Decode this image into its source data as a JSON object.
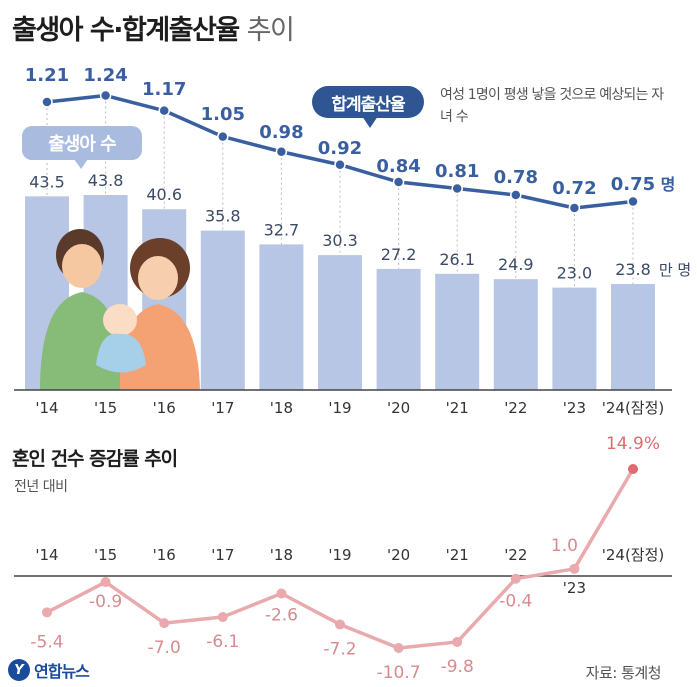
{
  "title": {
    "main": "출생아 수·합계출산율",
    "light": "추이"
  },
  "callout": {
    "label": "합계출산율",
    "note": "여성 1명이 평생 낳을 것으로 예상되는 자녀 수"
  },
  "births_label": "출생아 수",
  "units": {
    "fertility": "명",
    "births": "만 명"
  },
  "marriage": {
    "title": "혼인 건수 증감률 추이",
    "subtitle": "전년 대비"
  },
  "source": "자료: 통계청",
  "logo": {
    "mark": "Y",
    "text": "연합뉴스"
  },
  "colors": {
    "bar": "#b7c6e4",
    "line": "#3a5fa0",
    "marriage_line": "#e9a9ad",
    "marriage_last": "#e06b70",
    "axis": "#444444"
  },
  "chart_data": [
    {
      "type": "bar",
      "name": "births",
      "categories": [
        "'14",
        "'15",
        "'16",
        "'17",
        "'18",
        "'19",
        "'20",
        "'21",
        "'22",
        "'23",
        "'24(잠정)"
      ],
      "values": [
        43.5,
        43.8,
        40.6,
        35.8,
        32.7,
        30.3,
        27.2,
        26.1,
        24.9,
        23.0,
        23.8
      ],
      "labels": [
        "43.5",
        "43.8",
        "40.6",
        "35.8",
        "32.7",
        "30.3",
        "27.2",
        "26.1",
        "24.9",
        "23.0",
        "23.8"
      ],
      "ylabel": "만 명"
    },
    {
      "type": "line",
      "name": "fertility_rate",
      "categories": [
        "'14",
        "'15",
        "'16",
        "'17",
        "'18",
        "'19",
        "'20",
        "'21",
        "'22",
        "'23",
        "'24(잠정)"
      ],
      "values": [
        1.21,
        1.24,
        1.17,
        1.05,
        0.98,
        0.92,
        0.84,
        0.81,
        0.78,
        0.72,
        0.75
      ],
      "labels": [
        "1.21",
        "1.24",
        "1.17",
        "1.05",
        "0.98",
        "0.92",
        "0.84",
        "0.81",
        "0.78",
        "0.72",
        "0.75"
      ],
      "ylabel": "명"
    },
    {
      "type": "line",
      "name": "marriage_change",
      "categories": [
        "'14",
        "'15",
        "'16",
        "'17",
        "'18",
        "'19",
        "'20",
        "'21",
        "'22",
        "'23",
        "'24(잠정)"
      ],
      "values": [
        -5.4,
        -0.9,
        -7.0,
        -6.1,
        -2.6,
        -7.2,
        -10.7,
        -9.8,
        -0.4,
        1.0,
        14.9
      ],
      "labels": [
        "-5.4",
        "-0.9",
        "-7.0",
        "-6.1",
        "-2.6",
        "-7.2",
        "-10.7",
        "-9.8",
        "-0.4",
        "1.0",
        "14.9%"
      ]
    }
  ]
}
